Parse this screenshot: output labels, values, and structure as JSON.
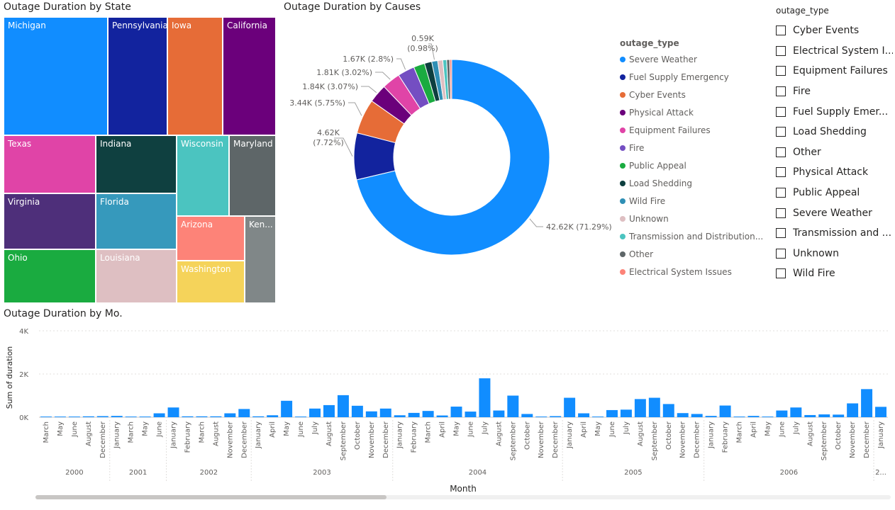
{
  "titles": {
    "treemap": "Outage Duration by State",
    "donut": "Outage Duration by Causes",
    "bar": "Outage Duration by Mo."
  },
  "legend": {
    "title": "outage_type",
    "items": [
      {
        "label": "Severe Weather",
        "color": "#118DFF"
      },
      {
        "label": "Fuel Supply Emergency",
        "color": "#12239E"
      },
      {
        "label": "Cyber Events",
        "color": "#E66C37"
      },
      {
        "label": "Physical Attack",
        "color": "#6B007B"
      },
      {
        "label": "Equipment Failures",
        "color": "#E044A7"
      },
      {
        "label": "Fire",
        "color": "#744EC2"
      },
      {
        "label": "Public Appeal",
        "color": "#1AAB40"
      },
      {
        "label": "Load Shedding",
        "color": "#0D3F3F"
      },
      {
        "label": "Wild Fire",
        "color": "#2F8FB5"
      },
      {
        "label": "Unknown",
        "color": "#DEBFC2"
      },
      {
        "label": "Transmission and Distribution...",
        "color": "#4BC4C0"
      },
      {
        "label": "Other",
        "color": "#5E6668"
      },
      {
        "label": "Electrical System Issues",
        "color": "#FD8378"
      }
    ]
  },
  "slicer": {
    "title": "outage_type",
    "items": [
      "Cyber Events",
      "Electrical System I...",
      "Equipment Failures",
      "Fire",
      "Fuel Supply Emer...",
      "Load Shedding",
      "Other",
      "Physical Attack",
      "Public Appeal",
      "Severe Weather",
      "Transmission and ...",
      "Unknown",
      "Wild Fire"
    ]
  },
  "chart_data": [
    {
      "type": "treemap",
      "title": "Outage Duration by State",
      "tiles": [
        {
          "label": "Michigan",
          "color": "#118DFF"
        },
        {
          "label": "Pennsylvania",
          "color": "#12239E"
        },
        {
          "label": "Iowa",
          "color": "#E66C37"
        },
        {
          "label": "California",
          "color": "#6B007B"
        },
        {
          "label": "Texas",
          "color": "#E044A7"
        },
        {
          "label": "Indiana",
          "color": "#0F4040"
        },
        {
          "label": "Wisconsin",
          "color": "#4BC4C0"
        },
        {
          "label": "Maryland",
          "color": "#5E6668"
        },
        {
          "label": "Virginia",
          "color": "#4E2F7A"
        },
        {
          "label": "Florida",
          "color": "#3699BC"
        },
        {
          "label": "Arizona",
          "color": "#FD8378"
        },
        {
          "label": "Ken...",
          "color": "#808788"
        },
        {
          "label": "Ohio",
          "color": "#1AAB40"
        },
        {
          "label": "Louisiana",
          "color": "#DEBFC2"
        },
        {
          "label": "Washington",
          "color": "#F5D35A"
        }
      ]
    },
    {
      "type": "pie",
      "title": "Outage Duration by Causes",
      "slices": [
        {
          "label": "Severe Weather",
          "value": 42.62,
          "text": "42.62K (71.29%)"
        },
        {
          "label": "Fuel Supply Emergency",
          "value": 4.62,
          "text": "4.62K (7.72%)"
        },
        {
          "label": "Cyber Events",
          "value": 3.44,
          "text": "3.44K (5.75%)"
        },
        {
          "label": "Physical Attack",
          "value": 1.84,
          "text": "1.84K (3.07%)"
        },
        {
          "label": "Equipment Failures",
          "value": 1.81,
          "text": "1.81K (3.02%)"
        },
        {
          "label": "Fire",
          "value": 1.67,
          "text": "1.67K (2.8%)"
        },
        {
          "label": "Public Appeal",
          "value": 1.1,
          "text": ""
        },
        {
          "label": "Load Shedding",
          "value": 0.72,
          "text": ""
        },
        {
          "label": "Wild Fire",
          "value": 0.59,
          "text": "0.59K (0.98%)"
        },
        {
          "label": "Unknown",
          "value": 0.5,
          "text": ""
        },
        {
          "label": "Transmission and Distribution...",
          "value": 0.38,
          "text": ""
        },
        {
          "label": "Other",
          "value": 0.3,
          "text": ""
        },
        {
          "label": "Electrical System Issues",
          "value": 0.2,
          "text": ""
        }
      ]
    },
    {
      "type": "bar",
      "title": "Outage Duration by Mo.",
      "xlabel": "Month",
      "ylabel": "Sum of duration",
      "ylim": [
        0,
        4000
      ],
      "yticks": [
        "0K",
        "2K",
        "4K"
      ],
      "color": "#118DFF",
      "months": [
        "March",
        "May",
        "June",
        "August",
        "December",
        "January",
        "March",
        "May",
        "June",
        "January",
        "February",
        "March",
        "August",
        "November",
        "December",
        "January",
        "April",
        "May",
        "June",
        "July",
        "August",
        "September",
        "October",
        "November",
        "December",
        "January",
        "February",
        "March",
        "April",
        "May",
        "June",
        "July",
        "August",
        "September",
        "October",
        "November",
        "December",
        "January",
        "April",
        "May",
        "June",
        "July",
        "August",
        "September",
        "October",
        "November",
        "December",
        "January",
        "February",
        "March",
        "April",
        "May",
        "June",
        "July",
        "August",
        "September",
        "October",
        "November",
        "December",
        "January"
      ],
      "values": [
        30,
        30,
        30,
        40,
        50,
        60,
        30,
        30,
        180,
        450,
        40,
        40,
        40,
        180,
        380,
        40,
        90,
        760,
        30,
        400,
        560,
        1020,
        530,
        270,
        400,
        90,
        200,
        290,
        80,
        490,
        260,
        1800,
        310,
        1000,
        150,
        30,
        50,
        900,
        180,
        30,
        330,
        350,
        840,
        900,
        610,
        190,
        150,
        60,
        540,
        30,
        60,
        30,
        310,
        450,
        100,
        130,
        120,
        640,
        1300,
        480
      ],
      "years": [
        {
          "label": "2000",
          "count": 5
        },
        {
          "label": "2001",
          "count": 4
        },
        {
          "label": "2002",
          "count": 6
        },
        {
          "label": "2003",
          "count": 10
        },
        {
          "label": "2004",
          "count": 12
        },
        {
          "label": "2005",
          "count": 10
        },
        {
          "label": "2006",
          "count": 12
        },
        {
          "label": "2...",
          "count": 1
        }
      ]
    }
  ]
}
